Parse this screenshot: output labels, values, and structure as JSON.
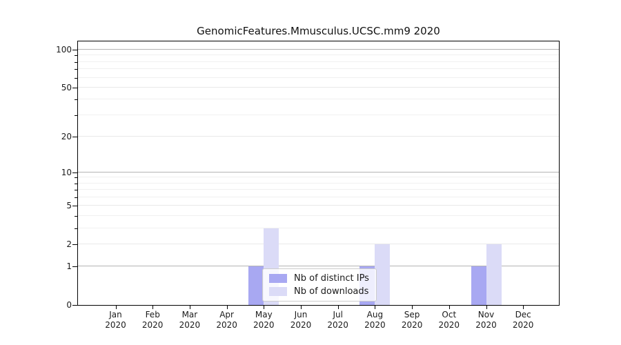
{
  "window": {
    "background": "#ffffff"
  },
  "chart_data": {
    "type": "bar",
    "title": "GenomicFeatures.Mmusculus.UCSC.mm9 2020",
    "year_label": "2020",
    "months": [
      "Jan",
      "Feb",
      "Mar",
      "Apr",
      "May",
      "Jun",
      "Jul",
      "Aug",
      "Sep",
      "Oct",
      "Nov",
      "Dec"
    ],
    "series": [
      {
        "name": "Nb of distinct IPs",
        "color": "#a8a8f2",
        "values": [
          0,
          0,
          0,
          0,
          1,
          0,
          0,
          1,
          0,
          0,
          1,
          0
        ]
      },
      {
        "name": "Nb of downloads",
        "color": "#dbdbf7",
        "values": [
          0,
          0,
          0,
          0,
          3,
          0,
          0,
          2,
          0,
          0,
          2,
          0
        ]
      }
    ],
    "y_axis": {
      "scale": "log1p",
      "labeled_ticks": [
        0,
        1,
        2,
        5,
        10,
        20,
        50,
        100
      ],
      "decade_gridlines": [
        1,
        10,
        100
      ],
      "minor_gridlines": [
        3,
        4,
        6,
        7,
        8,
        9,
        30,
        40,
        60,
        70,
        80,
        90
      ],
      "ylim": [
        0,
        115
      ]
    },
    "xlabel": "",
    "ylabel": "",
    "grid": true,
    "legend_position": "lower center inside plot",
    "colors": {
      "axis": "#000000",
      "grid_decade": "#b4b4b4",
      "grid_light": "#e9e9e9",
      "text": "#1a1a1a",
      "legend_border": "#cccccc"
    }
  }
}
